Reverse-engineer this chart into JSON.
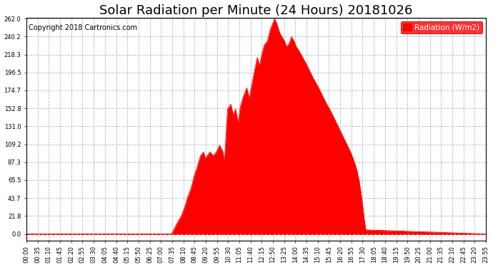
{
  "title": "Solar Radiation per Minute (24 Hours) 20181026",
  "copyright_text": "Copyright 2018 Cartronics.com",
  "legend_label": "Radiation (W/m2)",
  "legend_bg": "#ff0000",
  "legend_text_color": "#ffffff",
  "fill_color": "#ff0000",
  "line_color": "#ff0000",
  "background_color": "#ffffff",
  "grid_color": "#b0b0b0",
  "grid_style": "--",
  "ymin": 0.0,
  "ymax": 262.0,
  "yticks": [
    0.0,
    21.8,
    43.7,
    65.5,
    87.3,
    109.2,
    131.0,
    152.8,
    174.7,
    196.5,
    218.3,
    240.2,
    262.0
  ],
  "title_fontsize": 13,
  "tick_fontsize": 6.0,
  "copyright_fontsize": 7,
  "legend_fontsize": 7.5,
  "zero_line_color": "#ff0000",
  "x_labels": [
    "00:00",
    "00:35",
    "01:10",
    "01:45",
    "02:20",
    "02:55",
    "03:30",
    "04:05",
    "04:40",
    "05:15",
    "05:50",
    "06:25",
    "07:00",
    "07:35",
    "08:10",
    "08:45",
    "09:20",
    "09:55",
    "10:30",
    "11:05",
    "11:40",
    "12:15",
    "12:50",
    "13:25",
    "14:00",
    "14:35",
    "15:10",
    "15:45",
    "16:20",
    "16:55",
    "17:30",
    "18:05",
    "18:40",
    "19:15",
    "19:50",
    "20:25",
    "21:00",
    "21:35",
    "22:10",
    "22:45",
    "23:20",
    "23:55"
  ],
  "key_times": [
    0,
    454,
    460,
    470,
    485,
    495,
    505,
    515,
    525,
    535,
    545,
    555,
    560,
    575,
    585,
    595,
    605,
    615,
    620,
    630,
    640,
    648,
    655,
    663,
    670,
    680,
    690,
    698,
    705,
    715,
    723,
    730,
    738,
    745,
    755,
    763,
    770,
    778,
    785,
    793,
    800,
    808,
    815,
    823,
    830,
    838,
    845,
    855,
    865,
    875,
    885,
    895,
    905,
    915,
    925,
    935,
    945,
    955,
    965,
    975,
    985,
    995,
    1005,
    1015,
    1025,
    1035,
    1042,
    1048,
    1053,
    1058,
    1063,
    1440
  ],
  "key_vals": [
    0,
    0,
    4,
    12,
    22,
    32,
    45,
    55,
    70,
    82,
    95,
    100,
    92,
    100,
    95,
    100,
    108,
    100,
    88,
    152,
    158,
    145,
    152,
    135,
    155,
    168,
    178,
    165,
    180,
    200,
    215,
    205,
    220,
    230,
    235,
    248,
    255,
    262,
    255,
    245,
    240,
    235,
    228,
    232,
    240,
    235,
    228,
    222,
    215,
    208,
    200,
    192,
    185,
    178,
    170,
    162,
    155,
    148,
    140,
    132,
    124,
    116,
    108,
    100,
    90,
    78,
    65,
    50,
    35,
    18,
    5,
    0
  ]
}
